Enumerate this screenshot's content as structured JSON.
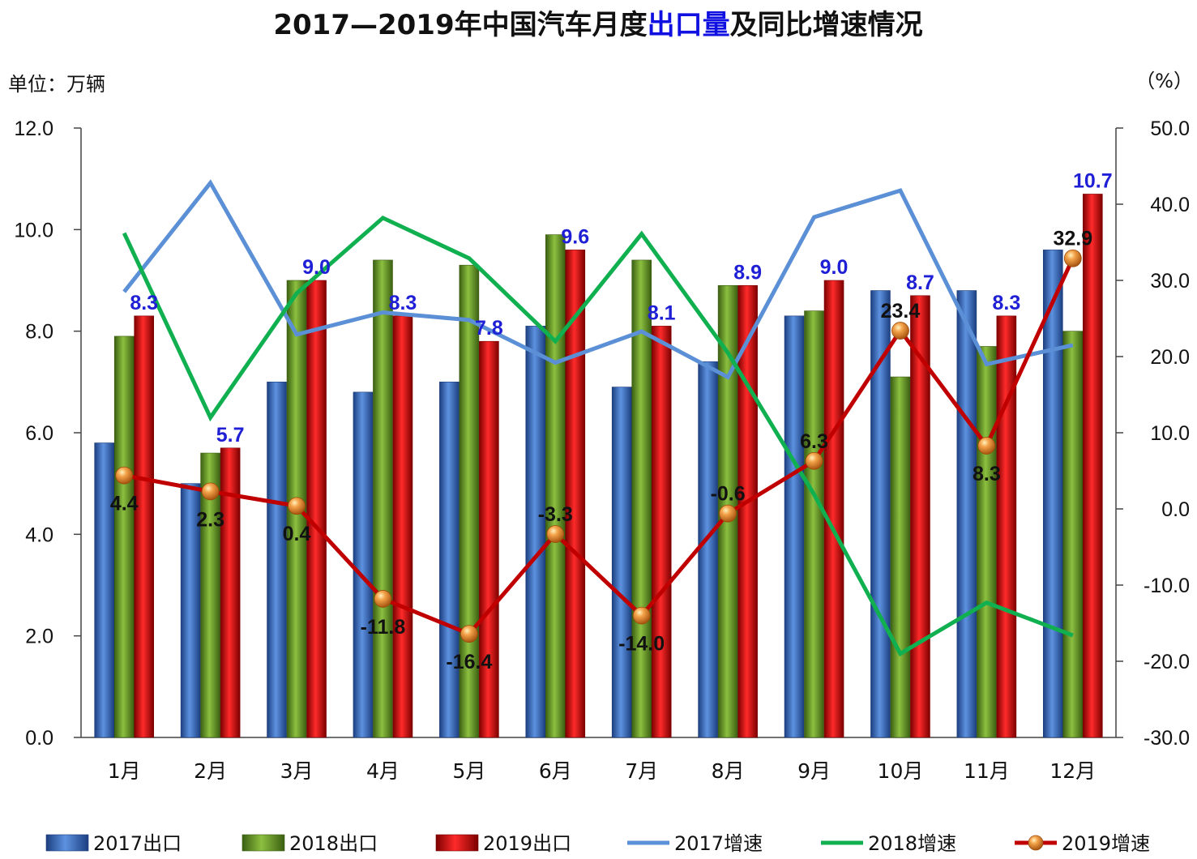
{
  "chart_data": {
    "type": "bar",
    "title": {
      "part1": "2017—2019年中国汽车月度",
      "part2": "出口量",
      "part3": "及同比增速情况"
    },
    "unit_left": "单位：万辆",
    "unit_right": "（%）",
    "categories": [
      "1月",
      "2月",
      "3月",
      "4月",
      "5月",
      "6月",
      "7月",
      "8月",
      "9月",
      "10月",
      "11月",
      "12月"
    ],
    "y_left": {
      "min": 0,
      "max": 12,
      "ticks": [
        "0.0",
        "2.0",
        "4.0",
        "6.0",
        "8.0",
        "10.0",
        "12.0"
      ]
    },
    "y_right": {
      "min": -30,
      "max": 50,
      "ticks": [
        "-30.0",
        "-20.0",
        "-10.0",
        "0.0",
        "10.0",
        "20.0",
        "30.0",
        "40.0",
        "50.0"
      ]
    },
    "bar_series": [
      {
        "name": "2017出口",
        "color": "#3a6fc4",
        "values": [
          5.8,
          5.0,
          7.0,
          6.8,
          7.0,
          8.1,
          6.9,
          7.4,
          8.3,
          8.8,
          8.8,
          9.6
        ]
      },
      {
        "name": "2018出口",
        "color": "#6a9a2a",
        "values": [
          7.9,
          5.6,
          9.0,
          9.4,
          9.3,
          9.9,
          9.4,
          8.9,
          8.4,
          7.1,
          7.7,
          8.0
        ]
      },
      {
        "name": "2019出口",
        "color": "#d40e0e",
        "values": [
          8.3,
          5.7,
          9.0,
          8.3,
          7.8,
          9.6,
          8.1,
          8.9,
          9.0,
          8.7,
          8.3,
          10.7
        ],
        "labels": [
          "8.3",
          "5.7",
          "9.0",
          "8.3",
          "7.8",
          "9.6",
          "8.1",
          "8.9",
          "9.0",
          "8.7",
          "8.3",
          "10.7"
        ]
      }
    ],
    "line_series": [
      {
        "name": "2017增速",
        "color": "#5b8fd6",
        "values": [
          28.5,
          42.8,
          22.9,
          25.8,
          24.8,
          19.2,
          23.3,
          17.3,
          38.3,
          41.8,
          19.0,
          21.5
        ]
      },
      {
        "name": "2018增速",
        "color": "#10b050",
        "values": [
          36.2,
          12.0,
          28.3,
          38.2,
          32.9,
          22.0,
          36.1,
          20.5,
          1.9,
          -19.0,
          -12.3,
          -16.6
        ]
      },
      {
        "name": "2019增速",
        "color": "#c00000",
        "marker": "orange-ball",
        "values": [
          4.4,
          2.3,
          0.4,
          -11.8,
          -16.4,
          -3.3,
          -14.0,
          -0.6,
          6.3,
          23.4,
          8.3,
          32.9
        ],
        "labels": [
          "4.4",
          "2.3",
          "0.4",
          "-11.8",
          "-16.4",
          "-3.3",
          "-14.0",
          "-0.6",
          "6.3",
          "23.4",
          "8.3",
          "32.9"
        ]
      }
    ],
    "legend": [
      "2017出口",
      "2018出口",
      "2019出口",
      "2017增速",
      "2018增速",
      "2019增速"
    ],
    "legend_position": "bottom",
    "grid": false
  }
}
